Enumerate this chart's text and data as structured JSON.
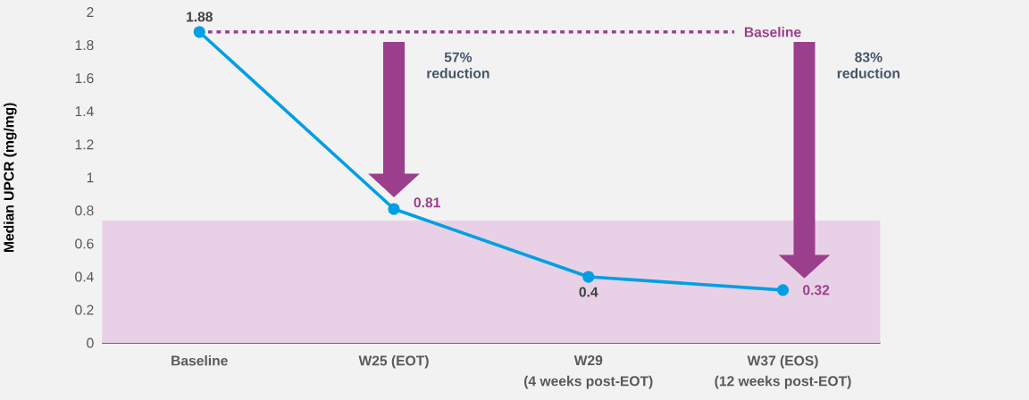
{
  "chart_data": {
    "type": "line",
    "ylabel": "Median UPCR (mg/mg)",
    "categories": [
      "Baseline",
      "W25 (EOT)",
      "W29",
      "W37 (EOS)"
    ],
    "series": [
      {
        "color": "#009fe3",
        "values": [
          1.88,
          0.81,
          0.4,
          0.32
        ]
      }
    ],
    "ylim": [
      0,
      2
    ],
    "yticks": [
      0,
      0.2,
      0.4,
      0.6,
      0.8,
      1,
      1.2,
      1.4,
      1.6,
      1.8,
      2
    ],
    "marker": "circle",
    "line_style": "solid",
    "data_labels": true,
    "ref_lines": [
      {
        "axis": "y",
        "value": 1.88,
        "label": "Baseline",
        "color": "#9b3f8c",
        "line_style": "dotted"
      }
    ],
    "bands": [
      {
        "axis": "y",
        "from": 0,
        "to": 0.74,
        "color": "#e8d1e6"
      }
    ],
    "annotations": [
      "57% reduction",
      "83% reduction",
      "(4 weeks post-EOT)",
      "(12 weeks post-EOT)"
    ]
  }
}
